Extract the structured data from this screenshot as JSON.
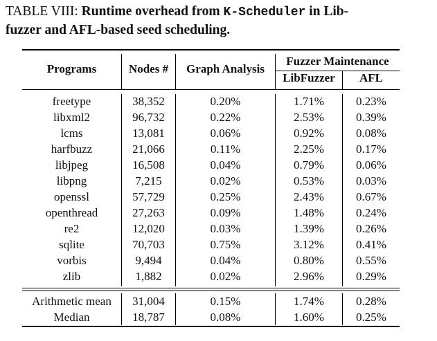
{
  "caption": {
    "label": "TABLE VIII:",
    "title_pre": "Runtime overhead from",
    "title_code": "K-Scheduler",
    "title_post": "in Lib-",
    "title_line2": "fuzzer and AFL-based seed scheduling."
  },
  "table": {
    "headers": {
      "programs": "Programs",
      "nodes": "Nodes #",
      "graph": "Graph Analysis",
      "fuzzer_group": "Fuzzer Maintenance",
      "libfuzzer": "LibFuzzer",
      "afl": "AFL"
    },
    "rows": [
      [
        "freetype",
        "38,352",
        "0.20%",
        "1.71%",
        "0.23%"
      ],
      [
        "libxml2",
        "96,732",
        "0.22%",
        "2.53%",
        "0.39%"
      ],
      [
        "lcms",
        "13,081",
        "0.06%",
        "0.92%",
        "0.08%"
      ],
      [
        "harfbuzz",
        "21,066",
        "0.11%",
        "2.25%",
        "0.17%"
      ],
      [
        "libjpeg",
        "16,508",
        "0.04%",
        "0.79%",
        "0.06%"
      ],
      [
        "libpng",
        "7,215",
        "0.02%",
        "0.53%",
        "0.03%"
      ],
      [
        "openssl",
        "57,729",
        "0.25%",
        "2.43%",
        "0.67%"
      ],
      [
        "openthread",
        "27,263",
        "0.09%",
        "1.48%",
        "0.24%"
      ],
      [
        "re2",
        "12,020",
        "0.03%",
        "1.39%",
        "0.26%"
      ],
      [
        "sqlite",
        "70,703",
        "0.75%",
        "3.12%",
        "0.41%"
      ],
      [
        "vorbis",
        "9,494",
        "0.04%",
        "0.80%",
        "0.55%"
      ],
      [
        "zlib",
        "1,882",
        "0.02%",
        "2.96%",
        "0.29%"
      ]
    ],
    "summary": [
      [
        "Arithmetic mean",
        "31,004",
        "0.15%",
        "1.74%",
        "0.28%"
      ],
      [
        "Median",
        "18,787",
        "0.08%",
        "1.60%",
        "0.25%"
      ]
    ]
  }
}
